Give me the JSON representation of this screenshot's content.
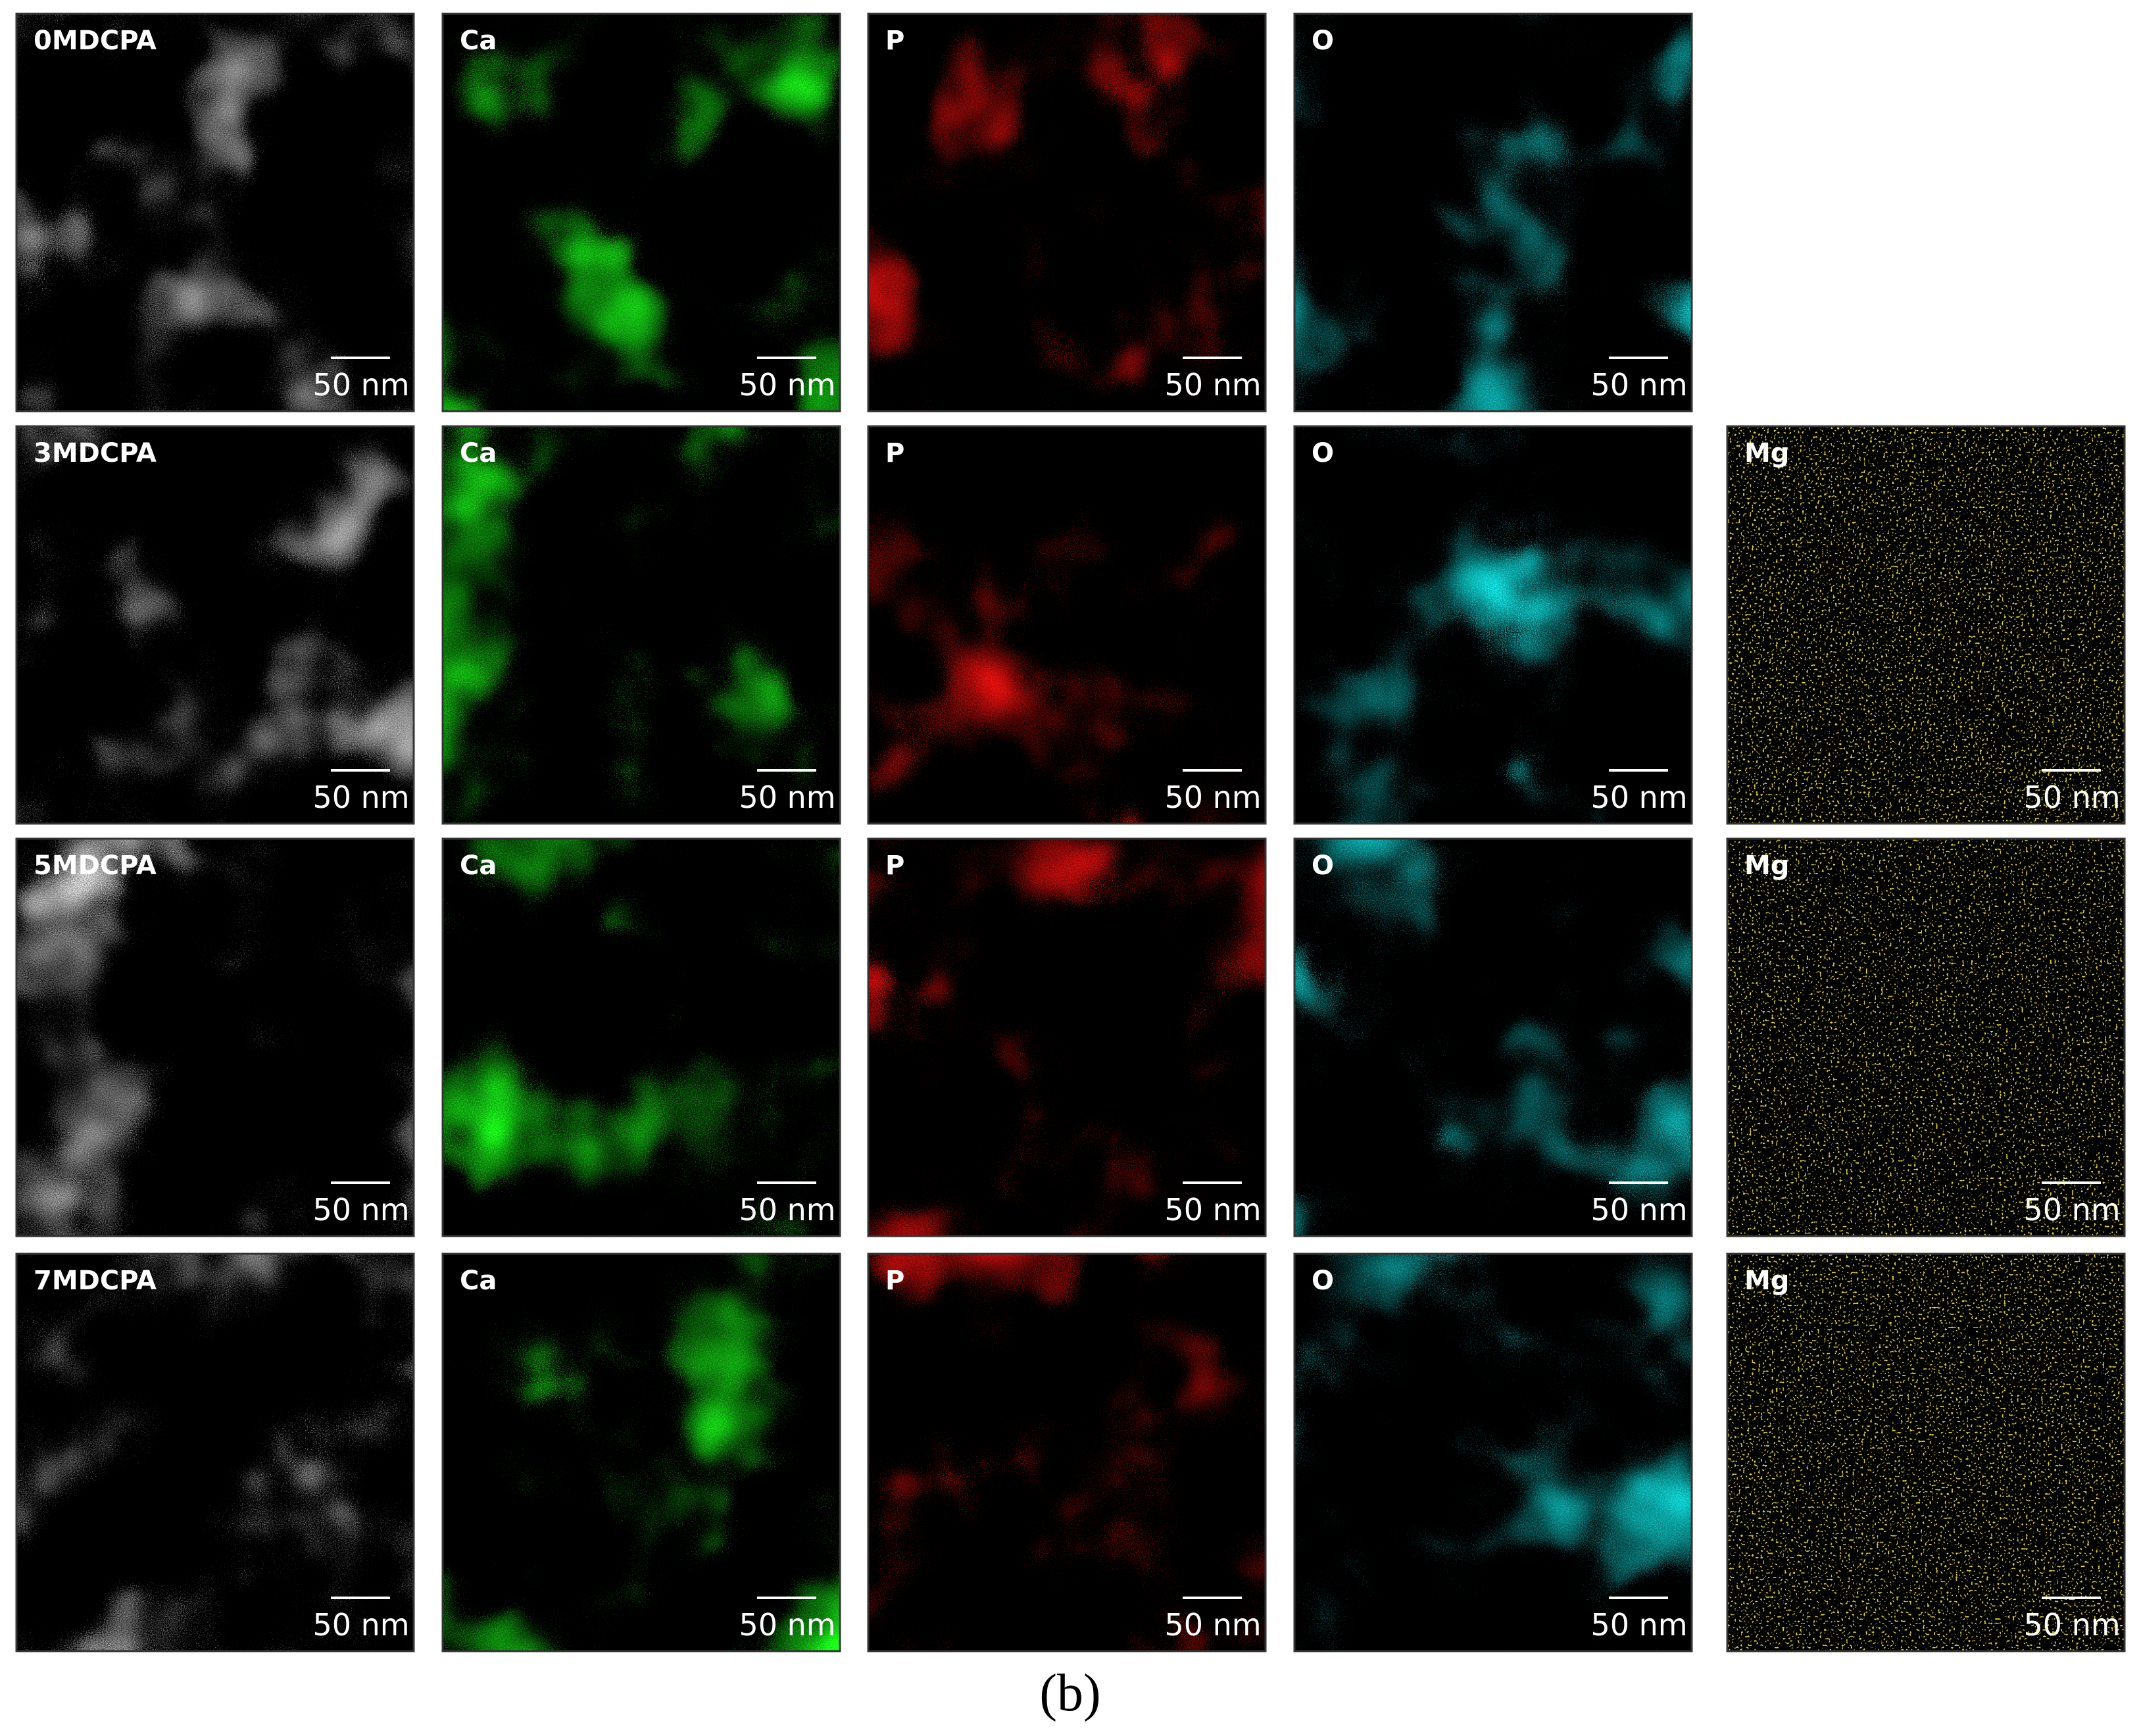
{
  "figure": {
    "rows": [
      {
        "panels": [
          {
            "label": "0MDCPA",
            "scale": "50 nm"
          },
          {
            "label": "Ca",
            "scale": "50 nm"
          },
          {
            "label": "P",
            "scale": "50 nm"
          },
          {
            "label": "O",
            "scale": "50 nm"
          }
        ]
      },
      {
        "panels": [
          {
            "label": "3MDCPA",
            "scale": "50 nm"
          },
          {
            "label": "Ca",
            "scale": "50 nm"
          },
          {
            "label": "P",
            "scale": "50 nm"
          },
          {
            "label": "O",
            "scale": "50 nm"
          },
          {
            "label": "Mg",
            "scale": "50 nm"
          }
        ]
      },
      {
        "panels": [
          {
            "label": "5MDCPA",
            "scale": "50 nm"
          },
          {
            "label": "Ca",
            "scale": "50 nm"
          },
          {
            "label": "P",
            "scale": "50 nm"
          },
          {
            "label": "O",
            "scale": "50 nm"
          },
          {
            "label": "Mg",
            "scale": "50 nm"
          }
        ]
      },
      {
        "panels": [
          {
            "label": "7MDCPA",
            "scale": "50 nm"
          },
          {
            "label": "Ca",
            "scale": "50 nm"
          },
          {
            "label": "P",
            "scale": "50 nm"
          },
          {
            "label": "O",
            "scale": "50 nm"
          },
          {
            "label": "Mg",
            "scale": "50 nm"
          }
        ]
      }
    ],
    "caption": "(b)"
  }
}
